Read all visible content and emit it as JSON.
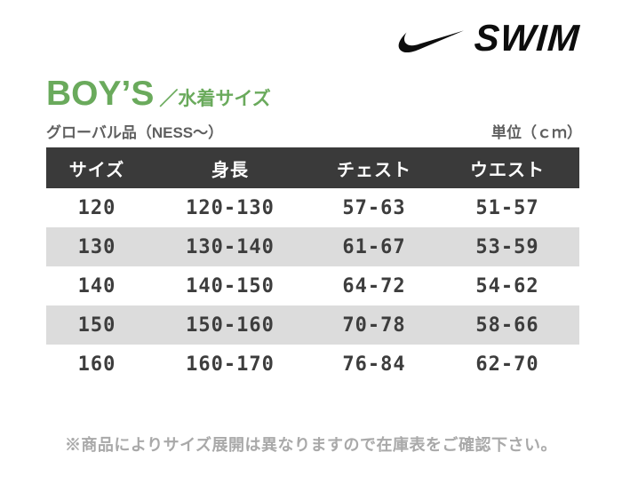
{
  "logo": {
    "wordmark": "SWIM"
  },
  "heading": {
    "title": "BOY’S",
    "subtitle": "／水着サイズ"
  },
  "meta": {
    "left": "グローバル品（NESS～）",
    "right": "単位（ｃｍ）"
  },
  "table": {
    "headers": [
      "サイズ",
      "身長",
      "チェスト",
      "ウエスト"
    ],
    "rows": [
      [
        "120",
        "120-130",
        "57-63",
        "51-57"
      ],
      [
        "130",
        "130-140",
        "61-67",
        "53-59"
      ],
      [
        "140",
        "140-150",
        "64-72",
        "54-62"
      ],
      [
        "150",
        "150-160",
        "70-78",
        "58-66"
      ],
      [
        "160",
        "160-170",
        "76-84",
        "62-70"
      ]
    ]
  },
  "footer": {
    "note": "※商品によりサイズ展開は異なりますので在庫表をご確認下さい。"
  },
  "colors": {
    "accent_green": "#6aaa5c",
    "header_bg": "#3a3a3a",
    "zebra_row": "#dcdcdc",
    "table_text": "#3d3d3d",
    "meta_gray": "#5f5f5f",
    "footer_gray": "#a9a9a9",
    "logo_black": "#0d0d0d"
  }
}
